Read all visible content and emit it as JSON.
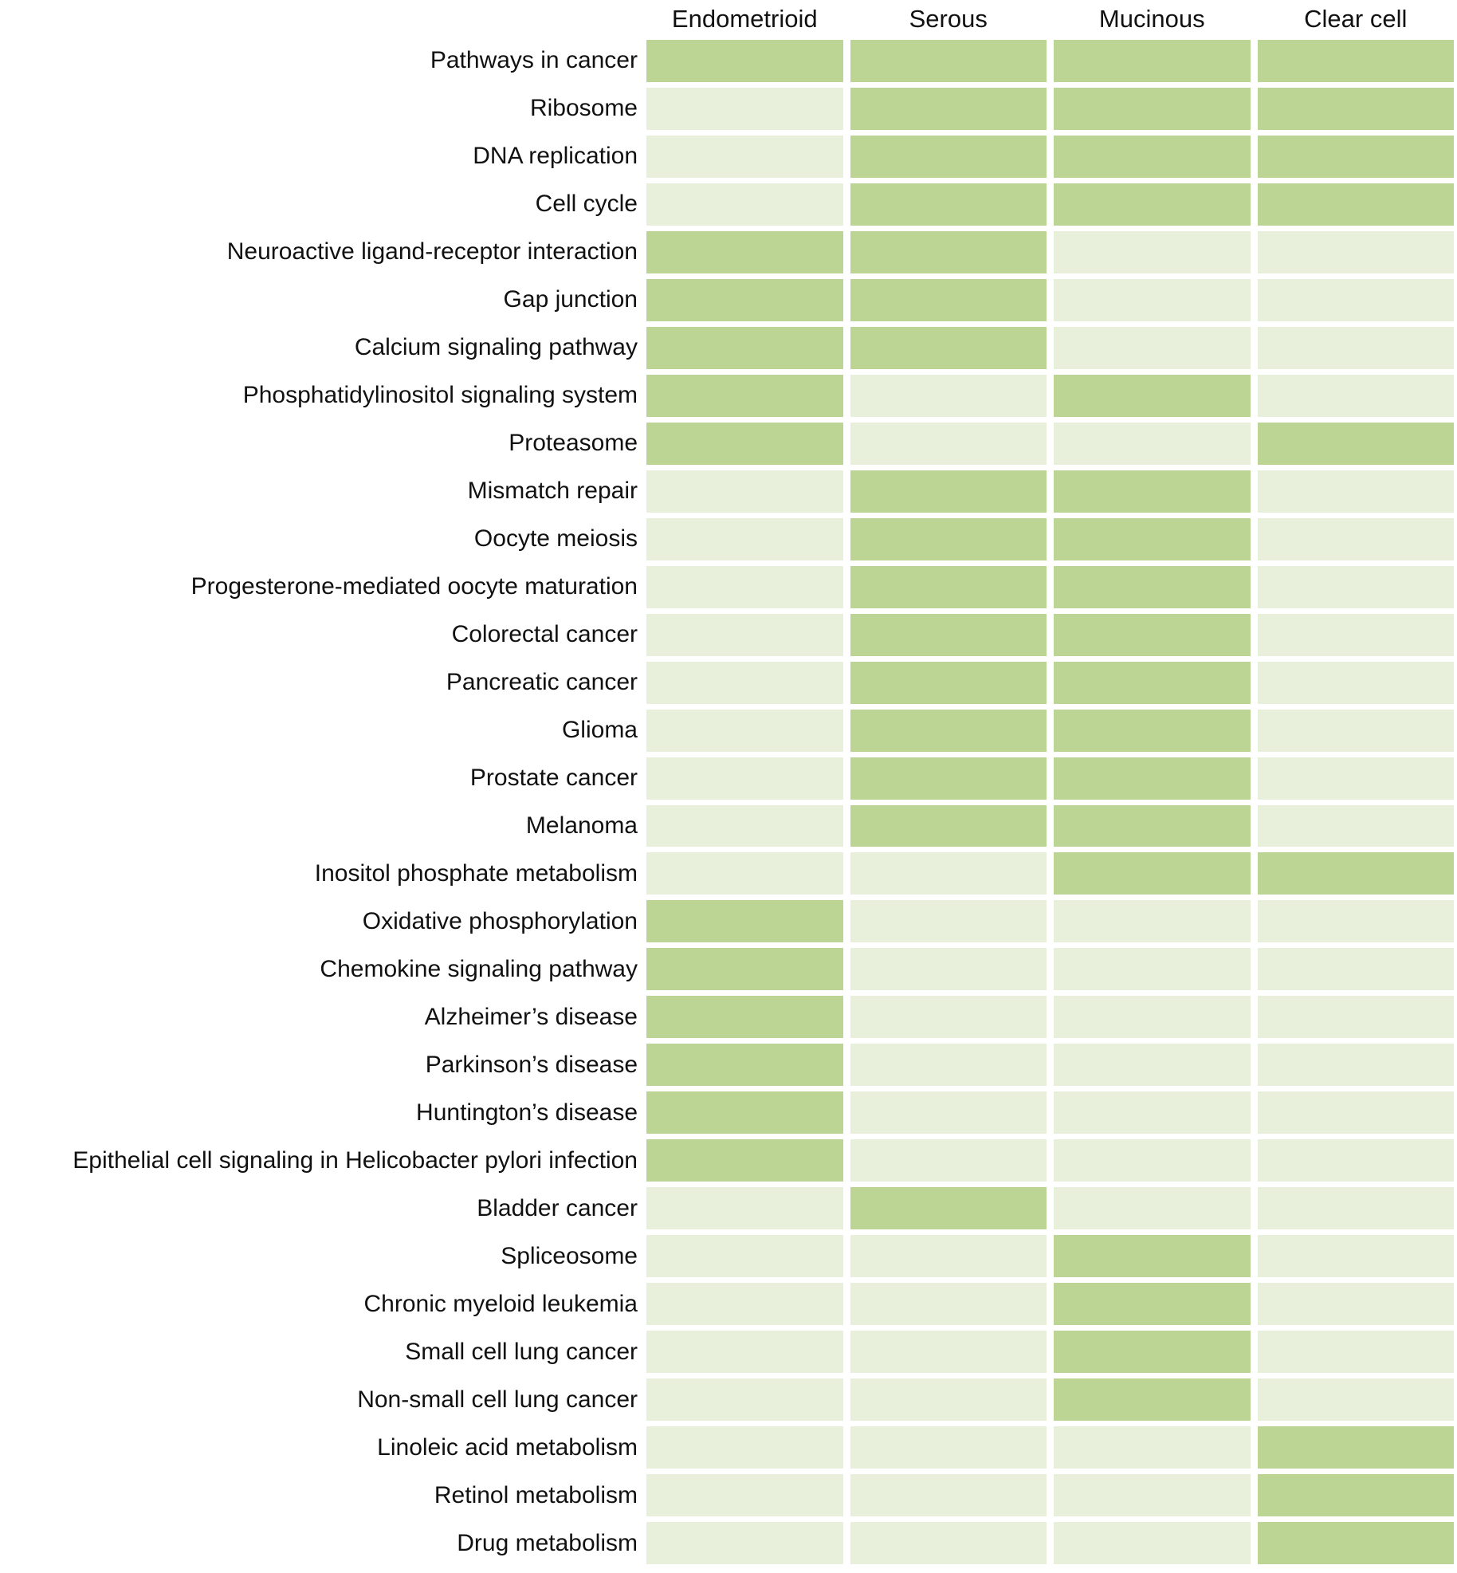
{
  "colors": {
    "cell_on": "#bcd494",
    "cell_off": "#e8f0db",
    "background": "#ffffff",
    "text": "#111111"
  },
  "chart_data": {
    "type": "heatmap",
    "title": "",
    "columns": [
      "Endometrioid",
      "Serous",
      "Mucinous",
      "Clear cell"
    ],
    "value_encoding": {
      "1": "enriched (dark green cell)",
      "0": "not enriched (pale green cell)"
    },
    "legend_position": "none",
    "grid": false,
    "rows": [
      {
        "label": "Pathways in cancer",
        "values": [
          1,
          1,
          1,
          1
        ]
      },
      {
        "label": "Ribosome",
        "values": [
          0,
          1,
          1,
          1
        ]
      },
      {
        "label": "DNA replication",
        "values": [
          0,
          1,
          1,
          1
        ]
      },
      {
        "label": "Cell cycle",
        "values": [
          0,
          1,
          1,
          1
        ]
      },
      {
        "label": "Neuroactive ligand-receptor interaction",
        "values": [
          1,
          1,
          0,
          0
        ]
      },
      {
        "label": "Gap junction",
        "values": [
          1,
          1,
          0,
          0
        ]
      },
      {
        "label": "Calcium signaling pathway",
        "values": [
          1,
          1,
          0,
          0
        ]
      },
      {
        "label": "Phosphatidylinositol signaling system",
        "values": [
          1,
          0,
          1,
          0
        ]
      },
      {
        "label": "Proteasome",
        "values": [
          1,
          0,
          0,
          1
        ]
      },
      {
        "label": "Mismatch repair",
        "values": [
          0,
          1,
          1,
          0
        ]
      },
      {
        "label": "Oocyte meiosis",
        "values": [
          0,
          1,
          1,
          0
        ]
      },
      {
        "label": "Progesterone-mediated oocyte maturation",
        "values": [
          0,
          1,
          1,
          0
        ]
      },
      {
        "label": "Colorectal cancer",
        "values": [
          0,
          1,
          1,
          0
        ]
      },
      {
        "label": "Pancreatic cancer",
        "values": [
          0,
          1,
          1,
          0
        ]
      },
      {
        "label": "Glioma",
        "values": [
          0,
          1,
          1,
          0
        ]
      },
      {
        "label": "Prostate cancer",
        "values": [
          0,
          1,
          1,
          0
        ]
      },
      {
        "label": "Melanoma",
        "values": [
          0,
          1,
          1,
          0
        ]
      },
      {
        "label": "Inositol phosphate metabolism",
        "values": [
          0,
          0,
          1,
          1
        ]
      },
      {
        "label": "Oxidative phosphorylation",
        "values": [
          1,
          0,
          0,
          0
        ]
      },
      {
        "label": "Chemokine signaling pathway",
        "values": [
          1,
          0,
          0,
          0
        ]
      },
      {
        "label": "Alzheimer’s disease",
        "values": [
          1,
          0,
          0,
          0
        ]
      },
      {
        "label": "Parkinson’s disease",
        "values": [
          1,
          0,
          0,
          0
        ]
      },
      {
        "label": "Huntington’s disease",
        "values": [
          1,
          0,
          0,
          0
        ]
      },
      {
        "label": "Epithelial cell signaling in Helicobacter pylori infection",
        "values": [
          1,
          0,
          0,
          0
        ]
      },
      {
        "label": "Bladder cancer",
        "values": [
          0,
          1,
          0,
          0
        ]
      },
      {
        "label": "Spliceosome",
        "values": [
          0,
          0,
          1,
          0
        ]
      },
      {
        "label": "Chronic myeloid leukemia",
        "values": [
          0,
          0,
          1,
          0
        ]
      },
      {
        "label": "Small cell lung cancer",
        "values": [
          0,
          0,
          1,
          0
        ]
      },
      {
        "label": "Non-small cell lung cancer",
        "values": [
          0,
          0,
          1,
          0
        ]
      },
      {
        "label": "Linoleic acid metabolism",
        "values": [
          0,
          0,
          0,
          1
        ]
      },
      {
        "label": "Retinol metabolism",
        "values": [
          0,
          0,
          0,
          1
        ]
      },
      {
        "label": "Drug metabolism",
        "values": [
          0,
          0,
          0,
          1
        ]
      }
    ]
  }
}
